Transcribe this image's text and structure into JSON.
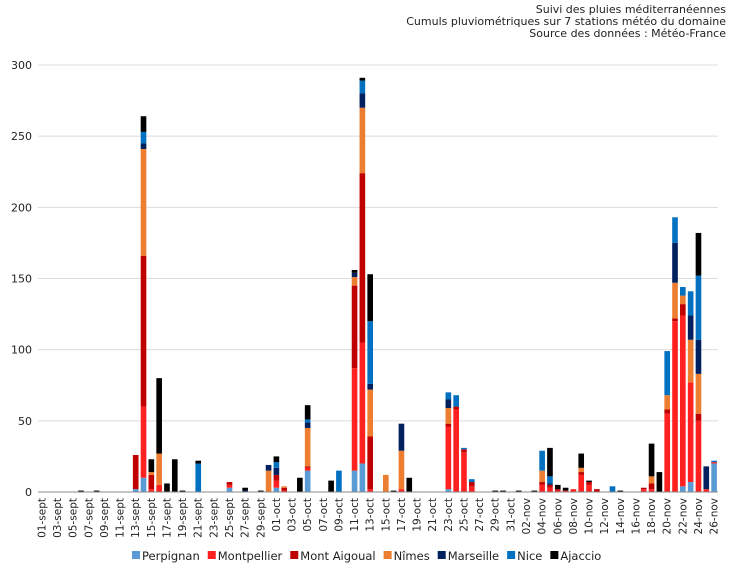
{
  "chart_data": {
    "type": "bar",
    "stacked": true,
    "title_lines": [
      "Suivi des pluies méditerranéennes",
      "Cumuls pluviométriques sur 7 stations météo du domaine",
      "Source des données : Météo-France"
    ],
    "xlabel": "",
    "ylabel": "",
    "ylim": [
      0,
      300
    ],
    "yticks": [
      0,
      50,
      100,
      150,
      200,
      250,
      300
    ],
    "grid": true,
    "legend_position": "bottom",
    "categories": [
      "01-sept",
      "02-sept",
      "03-sept",
      "04-sept",
      "05-sept",
      "06-sept",
      "07-sept",
      "08-sept",
      "09-sept",
      "10-sept",
      "11-sept",
      "12-sept",
      "13-sept",
      "14-sept",
      "15-sept",
      "16-sept",
      "17-sept",
      "18-sept",
      "19-sept",
      "20-sept",
      "21-sept",
      "22-sept",
      "23-sept",
      "24-sept",
      "25-sept",
      "26-sept",
      "27-sept",
      "28-sept",
      "29-sept",
      "30-sept",
      "01-oct",
      "02-oct",
      "03-oct",
      "04-oct",
      "05-oct",
      "06-oct",
      "07-oct",
      "08-oct",
      "09-oct",
      "10-oct",
      "11-oct",
      "12-oct",
      "13-oct",
      "14-oct",
      "15-oct",
      "16-oct",
      "17-oct",
      "18-oct",
      "19-oct",
      "20-oct",
      "21-oct",
      "22-oct",
      "23-oct",
      "24-oct",
      "25-oct",
      "26-oct",
      "27-oct",
      "28-oct",
      "29-oct",
      "30-oct",
      "31-oct",
      "01-nov",
      "02-nov",
      "03-nov",
      "04-nov",
      "05-nov",
      "06-nov",
      "07-nov",
      "08-nov",
      "09-nov",
      "10-nov",
      "11-nov",
      "12-nov",
      "13-nov",
      "14-nov",
      "15-nov",
      "16-nov",
      "17-nov",
      "18-nov",
      "19-nov",
      "20-nov",
      "21-nov",
      "22-nov",
      "23-nov",
      "24-nov",
      "25-nov",
      "26-nov"
    ],
    "visible_tick_labels": [
      "01-sept",
      "03-sept",
      "05-sept",
      "07-sept",
      "09-sept",
      "11-sept",
      "13-sept",
      "15-sept",
      "17-sept",
      "19-sept",
      "21-sept",
      "23-sept",
      "25-sept",
      "27-sept",
      "29-sept",
      "01-oct",
      "03-oct",
      "05-oct",
      "07-oct",
      "09-oct",
      "11-oct",
      "13-oct",
      "15-oct",
      "17-oct",
      "19-oct",
      "21-oct",
      "23-oct",
      "25-oct",
      "27-oct",
      "29-oct",
      "31-oct",
      "02-nov",
      "04-nov",
      "06-nov",
      "08-nov",
      "10-nov",
      "12-nov",
      "14-nov",
      "16-nov",
      "18-nov",
      "20-nov",
      "22-nov",
      "24-nov",
      "26-nov"
    ],
    "series": [
      {
        "name": "Perpignan",
        "color": "#5b9bd5",
        "values": [
          0,
          0,
          0,
          0,
          0,
          0,
          0,
          0,
          0,
          0,
          0,
          0,
          2,
          10,
          0,
          0,
          0,
          0,
          0,
          0,
          0,
          0,
          0,
          0,
          3,
          0,
          0,
          0,
          0,
          0,
          3,
          0,
          0,
          0,
          15,
          0,
          0,
          0,
          0,
          0,
          15,
          20,
          0,
          0,
          0,
          0,
          0,
          0,
          0,
          0,
          0,
          0,
          2,
          0,
          0,
          0,
          0,
          0,
          0,
          0,
          0,
          0,
          0,
          0,
          0,
          0,
          0,
          0,
          0,
          0,
          0,
          0,
          0,
          0,
          0,
          0,
          0,
          0,
          0,
          0,
          0,
          0,
          4,
          7,
          0,
          0,
          20
        ]
      },
      {
        "name": "Montpellier",
        "color": "#ff2020",
        "values": [
          0,
          0,
          0,
          0,
          0,
          0,
          0,
          0,
          0,
          0,
          0,
          0,
          0,
          50,
          2,
          5,
          0,
          0,
          0,
          0,
          0,
          0,
          0,
          0,
          2,
          0,
          0,
          0,
          0,
          0,
          5,
          1,
          0,
          0,
          2,
          0,
          0,
          0,
          0,
          0,
          72,
          85,
          2,
          0,
          0,
          0,
          2,
          0,
          0,
          0,
          0,
          0,
          44,
          58,
          28,
          4,
          0,
          0,
          0,
          0,
          0,
          0,
          0,
          0,
          5,
          3,
          1,
          1,
          2,
          12,
          5,
          0,
          0,
          0,
          0,
          0,
          0,
          2,
          2,
          0,
          55,
          120,
          120,
          70,
          50,
          2,
          1
        ]
      },
      {
        "name": "Mont Aigoual",
        "color": "#c00000",
        "values": [
          0,
          0,
          0,
          0,
          0,
          0,
          0,
          0,
          0,
          0,
          0,
          0,
          24,
          106,
          10,
          0,
          0,
          0,
          0,
          0,
          0,
          0,
          0,
          0,
          2,
          0,
          0,
          0,
          0,
          0,
          4,
          2,
          0,
          0,
          1,
          0,
          0,
          0,
          0,
          0,
          58,
          119,
          37,
          0,
          0,
          0,
          0,
          0,
          0,
          0,
          0,
          0,
          2,
          2,
          2,
          3,
          0,
          0,
          0,
          0,
          0,
          0,
          0,
          0,
          2,
          2,
          1,
          0,
          0,
          2,
          2,
          2,
          0,
          0,
          0,
          0,
          0,
          1,
          4,
          0,
          3,
          2,
          8,
          0,
          5,
          0,
          0
        ]
      },
      {
        "name": "Nîmes",
        "color": "#ed7d31",
        "values": [
          0,
          0,
          0,
          0,
          0,
          0,
          0,
          0,
          0,
          0,
          0,
          0,
          0,
          75,
          2,
          22,
          0,
          0,
          0,
          0,
          0,
          0,
          0,
          0,
          0,
          0,
          0,
          0,
          0,
          15,
          0,
          1,
          0,
          0,
          27,
          0,
          0,
          0,
          0,
          0,
          6,
          46,
          33,
          0,
          12,
          0,
          27,
          0,
          0,
          0,
          0,
          0,
          11,
          0,
          0,
          0,
          0,
          0,
          0,
          0,
          0,
          0,
          0,
          0,
          8,
          0,
          0,
          0,
          0,
          3,
          0,
          0,
          0,
          0,
          0,
          0,
          0,
          0,
          5,
          0,
          10,
          25,
          6,
          30,
          28,
          0,
          0
        ]
      },
      {
        "name": "Marseille",
        "color": "#002060",
        "values": [
          0,
          0,
          0,
          0,
          0,
          0,
          0,
          0,
          0,
          0,
          0,
          0,
          0,
          4,
          0,
          0,
          0,
          0,
          0,
          0,
          0,
          0,
          0,
          0,
          0,
          0,
          1,
          0,
          0,
          4,
          5,
          0,
          0,
          0,
          4,
          0,
          0,
          0,
          0,
          0,
          3,
          10,
          4,
          0,
          0,
          0,
          19,
          0,
          0,
          0,
          0,
          0,
          6,
          0,
          0,
          0,
          0,
          0,
          0,
          0,
          0,
          0,
          0,
          0,
          0,
          1,
          0,
          0,
          0,
          0,
          0,
          0,
          0,
          0,
          0,
          0,
          0,
          0,
          0,
          0,
          0,
          28,
          0,
          17,
          24,
          16,
          0
        ]
      },
      {
        "name": "Nice",
        "color": "#0070c0",
        "values": [
          0,
          0,
          0,
          0,
          0,
          0,
          0,
          0,
          0,
          0,
          0,
          0,
          0,
          8,
          0,
          0,
          0,
          0,
          0,
          0,
          20,
          0,
          0,
          0,
          0,
          0,
          0,
          0,
          0,
          0,
          4,
          0,
          0,
          0,
          2,
          0,
          0,
          0,
          15,
          0,
          0,
          9,
          44,
          0,
          0,
          0,
          0,
          0,
          0,
          0,
          0,
          0,
          5,
          8,
          1,
          2,
          0,
          0,
          0,
          0,
          0,
          0,
          0,
          0,
          14,
          5,
          0,
          0,
          0,
          0,
          0,
          0,
          0,
          4,
          0,
          0,
          0,
          0,
          0,
          0,
          31,
          18,
          6,
          17,
          45,
          0,
          1
        ]
      },
      {
        "name": "Ajaccio",
        "color": "#000000",
        "values": [
          0,
          0,
          0,
          0,
          0,
          1,
          0,
          1,
          0,
          0,
          0,
          0,
          0,
          11,
          9,
          53,
          6,
          23,
          1,
          0,
          2,
          0,
          0,
          0,
          0,
          0,
          2,
          0,
          1,
          0,
          4,
          0,
          0,
          10,
          10,
          0,
          0,
          8,
          0,
          0,
          2,
          2,
          33,
          0,
          0,
          1,
          0,
          10,
          0,
          0,
          0,
          0,
          0,
          0,
          0,
          0,
          0,
          0,
          1,
          1,
          0,
          1,
          0,
          1,
          0,
          20,
          3,
          2,
          0,
          10,
          1,
          0,
          0,
          0,
          1,
          0,
          0,
          0,
          23,
          14,
          0,
          0,
          0,
          0,
          30,
          0,
          0
        ]
      }
    ]
  }
}
